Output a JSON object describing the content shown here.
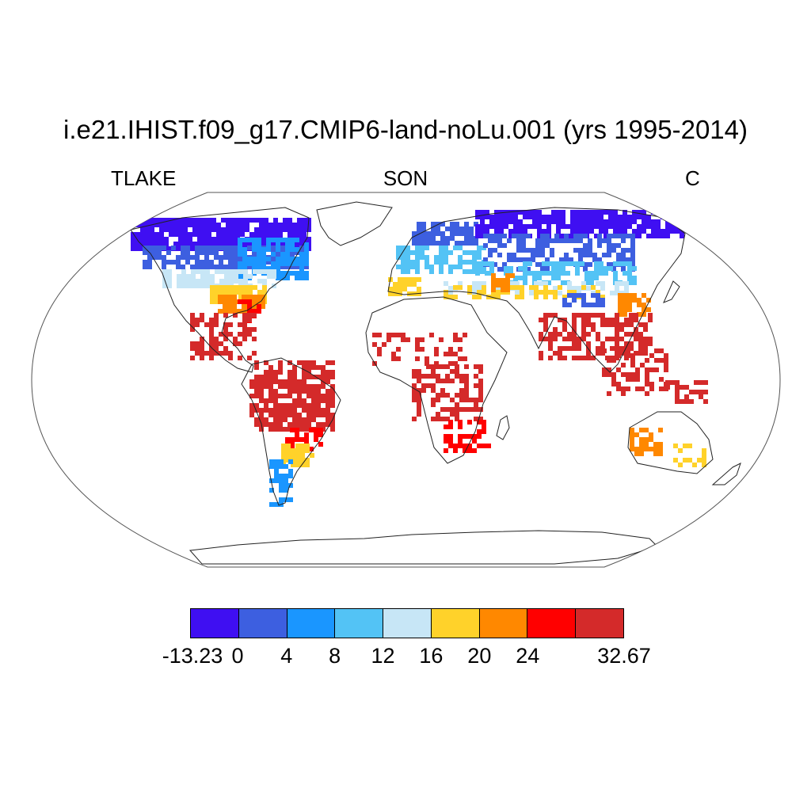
{
  "title": "i.e21.IHIST.f09_g17.CMIP6-land-noLu.001 (yrs 1995-2014)",
  "variable_label": "TLAKE",
  "season_label": "SON",
  "units_label": "C",
  "colorbar": {
    "colors": [
      "#3f0ff2",
      "#3d5fe0",
      "#1a96ff",
      "#53c3f5",
      "#c7e6f6",
      "#ffd22a",
      "#ff8800",
      "#ff0000",
      "#d42a2a"
    ],
    "tick_labels": [
      "-13.23",
      "0",
      "4",
      "8",
      "12",
      "16",
      "20",
      "24",
      "32.67"
    ]
  },
  "map": {
    "projection": "Robinson",
    "value_bins_by_region": [
      {
        "region": "Arctic Canada / Siberia",
        "bin": 0
      },
      {
        "region": "Canada / Scandinavia / N Russia",
        "bin": 1
      },
      {
        "region": "N Europe / Central Asia",
        "bin": 2
      },
      {
        "region": "Central US / Patagonia",
        "bin": 4
      },
      {
        "region": "S US / Mediterranean / China / Australia",
        "bin": 5
      },
      {
        "region": "Gulf coast / N India border",
        "bin": 6
      },
      {
        "region": "Tropics (Amazon, Africa, India, SE Asia)",
        "bin": 8
      }
    ]
  }
}
